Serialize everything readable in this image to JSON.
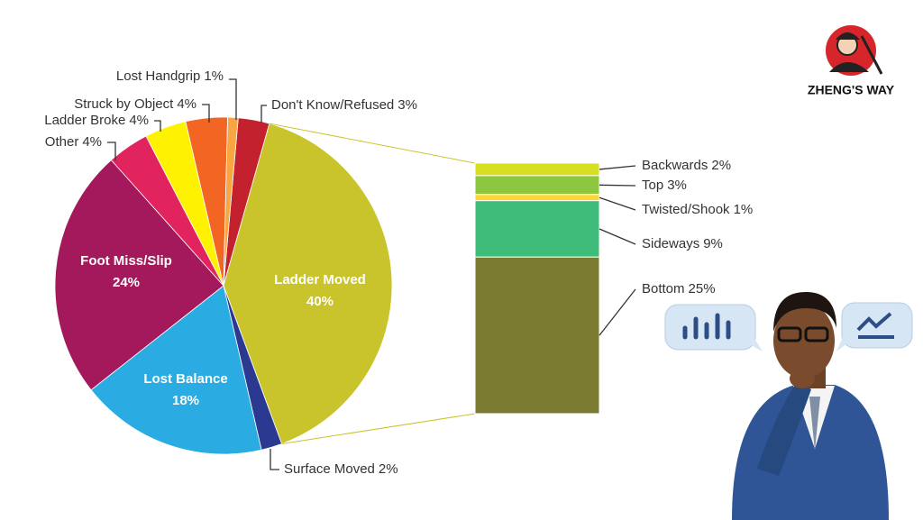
{
  "chart_data": {
    "type": "pie",
    "categories": [
      "Don't Know/Refused",
      "Ladder Moved",
      "Surface Moved",
      "Lost Balance",
      "Foot Miss/Slip",
      "Other",
      "Ladder Broke",
      "Struck by Object",
      "Lost Handgrip"
    ],
    "values": [
      3,
      40,
      2,
      18,
      24,
      4,
      4,
      4,
      1
    ],
    "value_labels": [
      "3%",
      "40%",
      "2%",
      "18%",
      "24%",
      "4%",
      "4%",
      "4%",
      "1%"
    ],
    "colors": [
      "#c4212f",
      "#c9c42c",
      "#2b3990",
      "#2aabe2",
      "#a3195b",
      "#e2245e",
      "#fff200",
      "#f26522",
      "#f8a542"
    ],
    "breakdown_categories": [
      "Backwards",
      "Top",
      "Twisted/Shook",
      "Sideways",
      "Bottom"
    ],
    "breakdown_values": [
      2,
      3,
      1,
      9,
      25
    ],
    "breakdown_value_labels": [
      "2%",
      "3%",
      "1%",
      "9%",
      "25%"
    ],
    "breakdown_colors": [
      "#d7df23",
      "#8dc63f",
      "#fdd835",
      "#3ebd7a",
      "#7b7a31"
    ]
  },
  "logo": "ZHENG'S WAY"
}
